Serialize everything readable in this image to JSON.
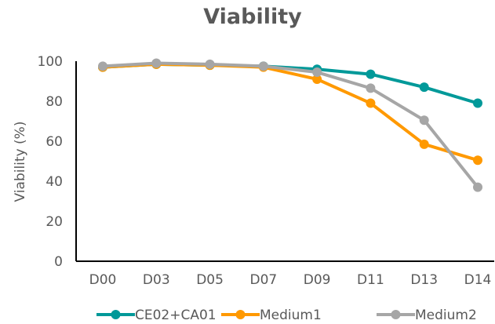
{
  "chart_data": {
    "type": "line",
    "title": "Viability",
    "xlabel": "",
    "ylabel": "Viability (%)",
    "categories": [
      "D00",
      "D03",
      "D05",
      "D07",
      "D09",
      "D11",
      "D13",
      "D14"
    ],
    "ylim": [
      0,
      100
    ],
    "yticks": [
      0,
      20,
      40,
      60,
      80,
      100
    ],
    "grid": false,
    "legend_position": "bottom",
    "series": [
      {
        "name": "CE02+CA01",
        "color": "#009999",
        "values": [
          97,
          98.5,
          98,
          97.5,
          96,
          93.5,
          87,
          79
        ]
      },
      {
        "name": "Medium1",
        "color": "#FF9900",
        "values": [
          97,
          98.5,
          98,
          97,
          91,
          79,
          58.5,
          50.5
        ]
      },
      {
        "name": "Medium2",
        "color": "#A6A6A6",
        "values": [
          97.5,
          99,
          98.5,
          97.5,
          94.5,
          86.5,
          70.5,
          37
        ]
      }
    ]
  }
}
